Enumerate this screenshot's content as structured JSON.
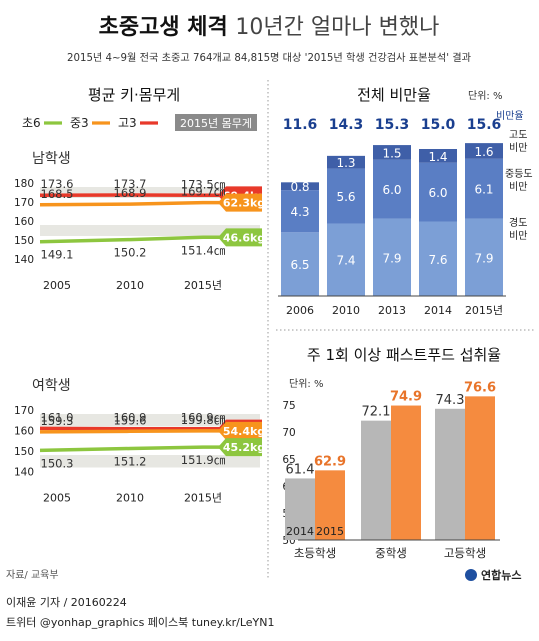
{
  "header": {
    "title_bold": "초중고생 체격",
    "title_light": "10년간 얼마나 변했나",
    "subtitle": "2015년 4~9월 전국 초중고 764개교 84,815명 대상 '2015년 학생 건강검사 표본분석' 결과"
  },
  "footer": {
    "source": "자료/ 교육부",
    "reporter": "이재윤 기자 / 20160224",
    "social": "트위터 @yonhap_graphics  페이스북 tuney.kr/LeYN1",
    "logo": "연합뉴스"
  },
  "colors": {
    "elementary": "#8dc63f",
    "middle": "#f7941d",
    "high": "#e8392a",
    "title_blue": "#1a3f8f",
    "obesity_light": "#7c9fd6",
    "obesity_mid": "#5a7ec4",
    "obesity_dark": "#3f5fa8",
    "fastfood_2014": "#b7b7b7",
    "fastfood_2015": "#f58b3f"
  },
  "chart_data": [
    {
      "type": "line",
      "title": "평균 키·몸무게",
      "panel_label": "남학생",
      "legend": [
        "초6",
        "중3",
        "고3"
      ],
      "weight_legend": "2015년 몸무게",
      "x": [
        "2005",
        "2010",
        "2015년"
      ],
      "ylim": [
        140,
        180
      ],
      "yticks": [
        "180",
        "170",
        "160",
        "150",
        "140"
      ],
      "height_unit_suffix": "㎝",
      "series": [
        {
          "name": "고3",
          "values": [
            173.6,
            173.7,
            173.5
          ],
          "labels": [
            "173.6",
            "173.7",
            "173.5㎝"
          ],
          "weight_2015": "69.4kg"
        },
        {
          "name": "중3",
          "values": [
            168.5,
            168.9,
            169.7
          ],
          "labels": [
            "168.5",
            "168.9",
            "169.7㎝"
          ],
          "weight_2015": "62.3kg"
        },
        {
          "name": "초6",
          "values": [
            149.1,
            150.2,
            151.4
          ],
          "labels": [
            "149.1",
            "150.2",
            "151.4㎝"
          ],
          "weight_2015": "46.6kg"
        }
      ]
    },
    {
      "type": "line",
      "panel_label": "여학생",
      "x": [
        "2005",
        "2010",
        "2015년"
      ],
      "ylim": [
        140,
        170
      ],
      "yticks": [
        "170",
        "160",
        "150",
        "140"
      ],
      "series": [
        {
          "name": "고3",
          "values": [
            161.0,
            160.9,
            160.9
          ],
          "labels": [
            "161.0",
            "160.9",
            "160.9㎝"
          ],
          "weight_2015": "57.1kg"
        },
        {
          "name": "중3",
          "values": [
            159.3,
            159.6,
            159.8
          ],
          "labels": [
            "159.3",
            "159.6",
            "159.8㎝"
          ],
          "weight_2015": "54.4kg"
        },
        {
          "name": "초6",
          "values": [
            150.3,
            151.2,
            151.9
          ],
          "labels": [
            "150.3",
            "151.2",
            "151.9㎝"
          ],
          "weight_2015": "45.2kg"
        }
      ]
    },
    {
      "type": "bar",
      "stacked": true,
      "title": "전체 비만율",
      "unit": "단위: %",
      "categories": [
        "2006",
        "2010",
        "2013",
        "2014",
        "2015년"
      ],
      "totals": [
        "11.6",
        "14.3",
        "15.3",
        "15.0",
        "15.6"
      ],
      "total_label": "비만율",
      "series": [
        {
          "name": "경도 비만",
          "values": [
            6.5,
            7.4,
            7.9,
            7.6,
            7.9
          ],
          "labels": [
            "6.5",
            "7.4",
            "7.9",
            "7.6",
            "7.9"
          ]
        },
        {
          "name": "중등도 비만",
          "values": [
            4.3,
            5.6,
            6.0,
            6.0,
            6.1
          ],
          "labels": [
            "4.3",
            "5.6",
            "6.0",
            "6.0",
            "6.1"
          ]
        },
        {
          "name": "고도 비만",
          "values": [
            0.8,
            1.3,
            1.5,
            1.4,
            1.6
          ],
          "labels": [
            "0.8",
            "1.3",
            "1.5",
            "1.4",
            "1.6"
          ]
        }
      ],
      "legend_labels": {
        "high": [
          "고도",
          "비만"
        ],
        "mid": [
          "중등도",
          "비만"
        ],
        "low": [
          "경도",
          "비만"
        ]
      }
    },
    {
      "type": "bar",
      "title": "주 1회 이상 패스트푸드 섭취율",
      "unit": "단위: %",
      "categories": [
        "초등학생",
        "중학생",
        "고등학생"
      ],
      "ylim": [
        50,
        75
      ],
      "yticks": [
        "75",
        "70",
        "65",
        "60",
        "55",
        "50"
      ],
      "series": [
        {
          "name": "2014",
          "values": [
            61.4,
            72.1,
            74.3
          ],
          "labels": [
            "61.4",
            "72.1",
            "74.3"
          ]
        },
        {
          "name": "2015",
          "values": [
            62.9,
            74.9,
            76.6
          ],
          "labels": [
            "62.9",
            "74.9",
            "76.6"
          ]
        }
      ]
    }
  ]
}
